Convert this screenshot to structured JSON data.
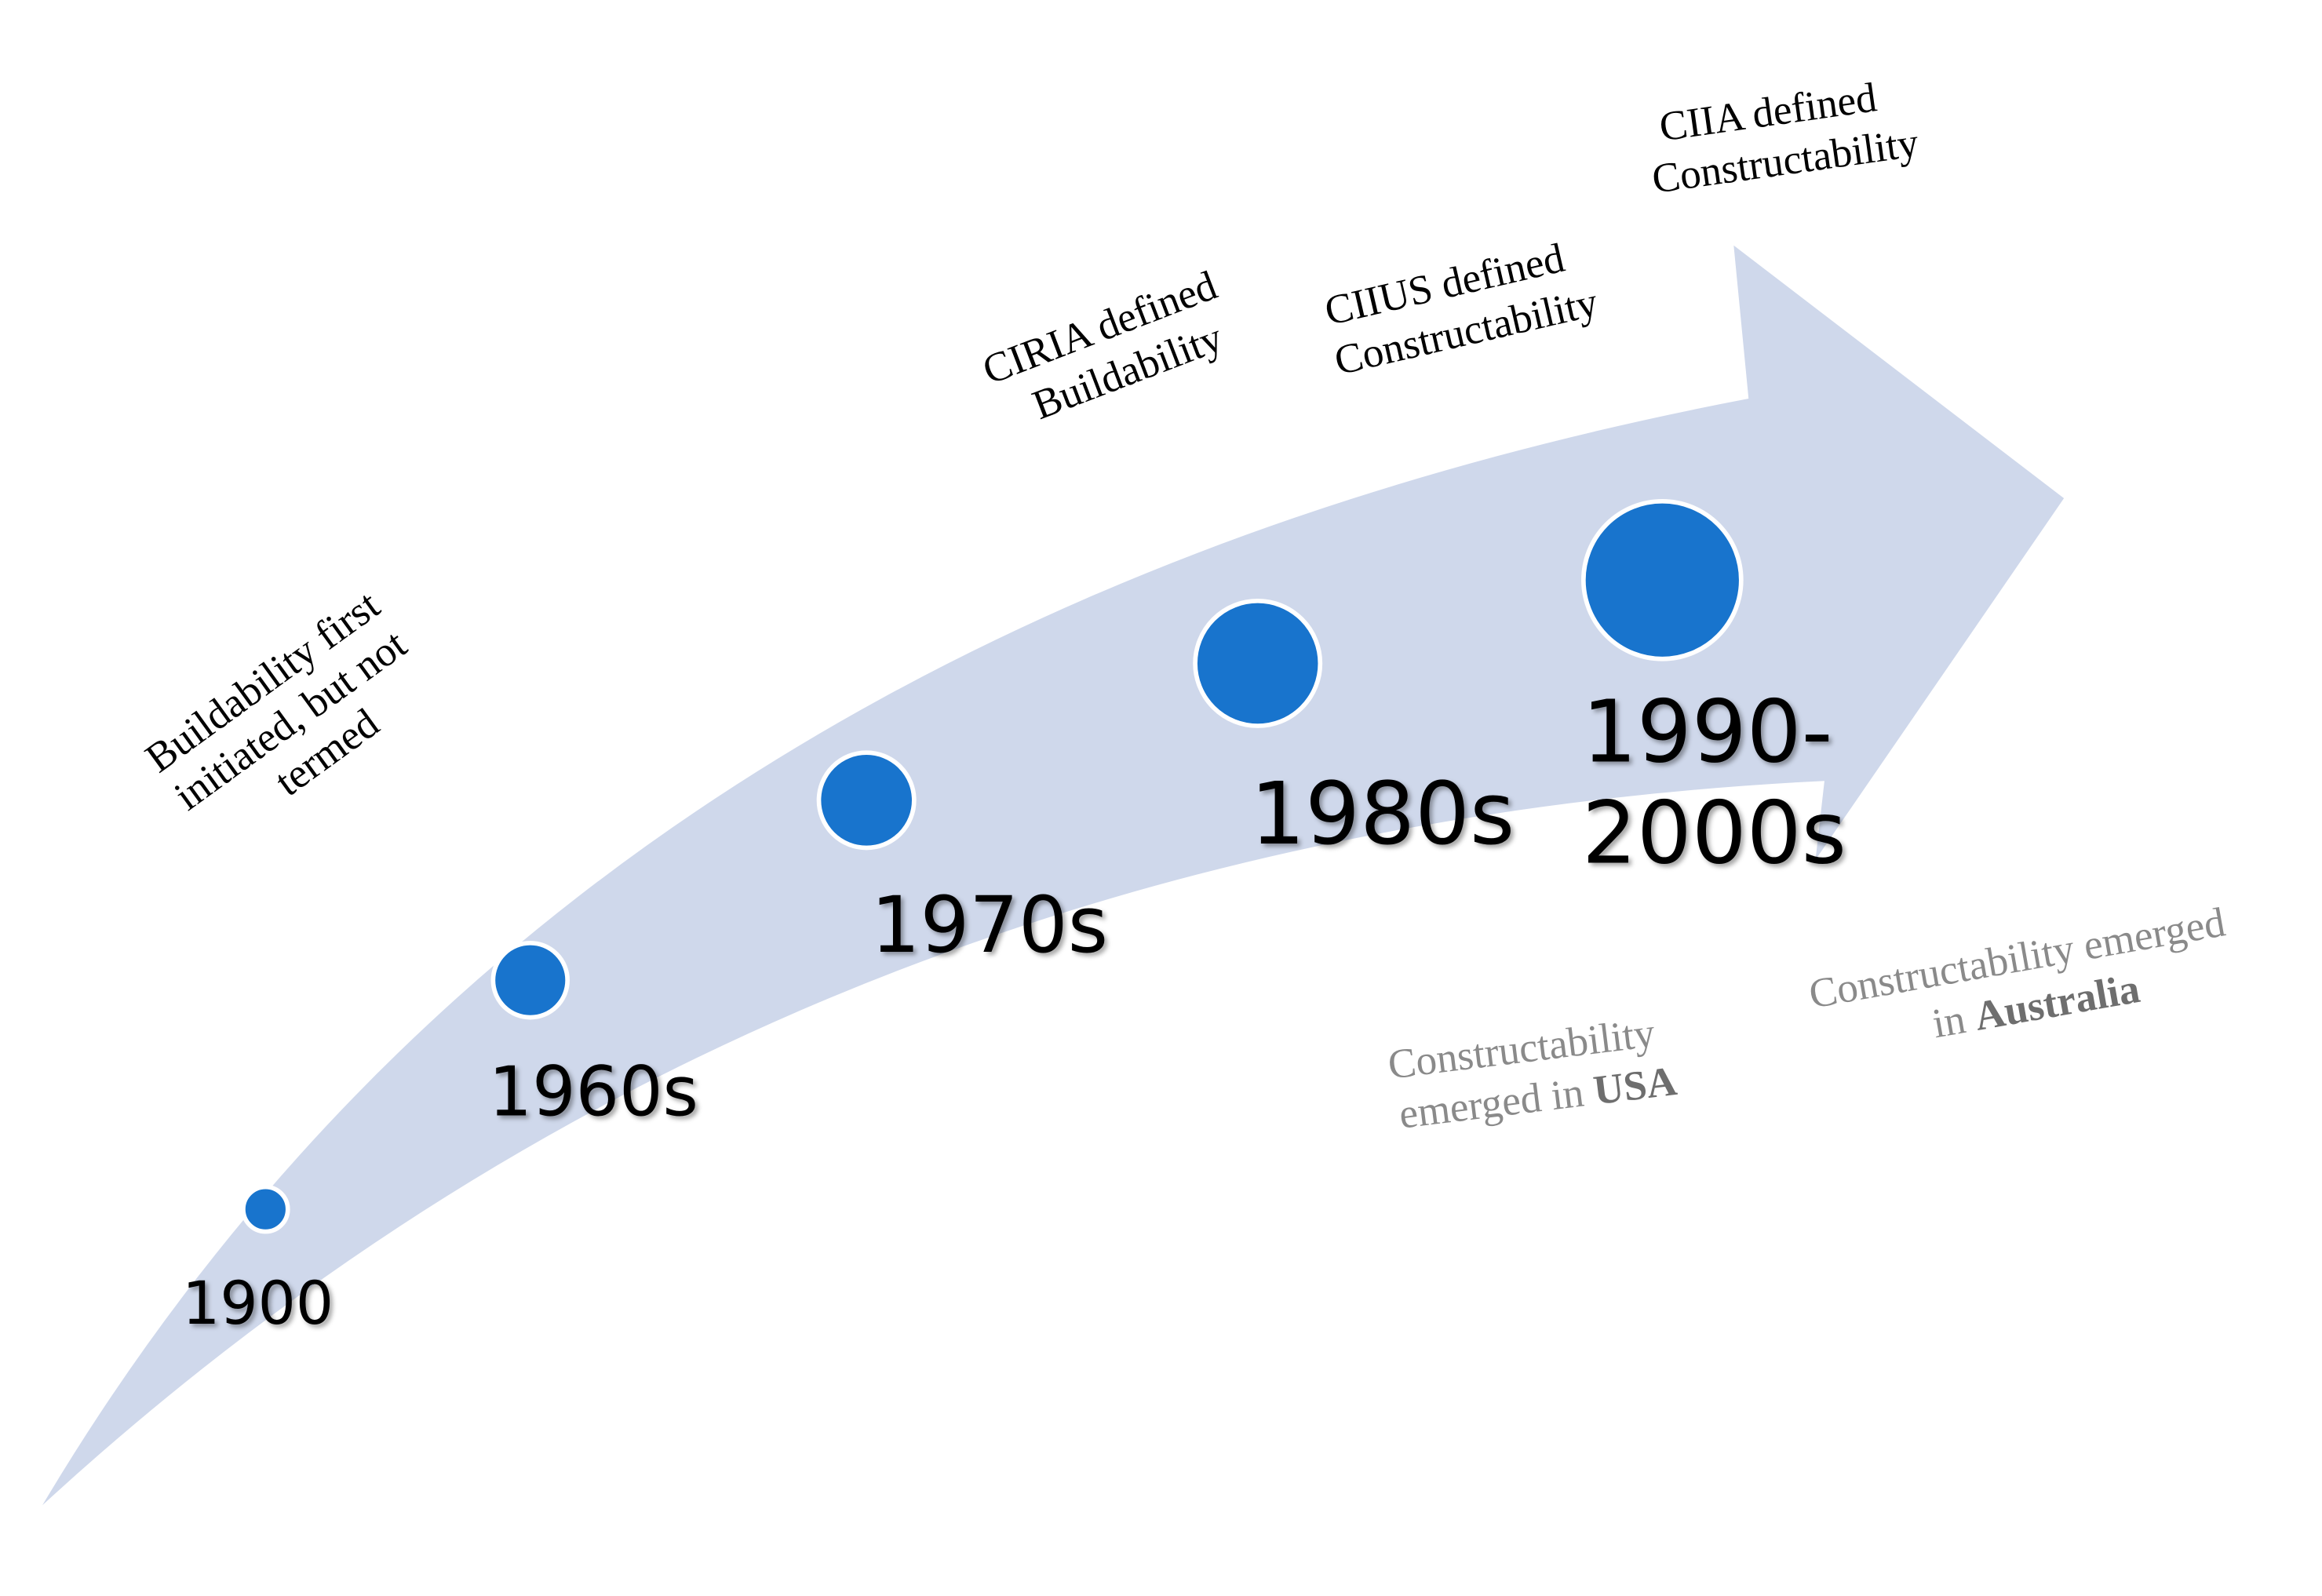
{
  "milestones": [
    {
      "label": [
        "1900"
      ]
    },
    {
      "label": [
        "1960s"
      ]
    },
    {
      "label": [
        "1970s"
      ]
    },
    {
      "label": [
        "1980s"
      ]
    },
    {
      "label": [
        "1990-",
        "2000s"
      ]
    }
  ],
  "annotations": [
    {
      "lines": [
        "Buildability first",
        "initiated, but not",
        "termed"
      ]
    },
    {
      "lines": [
        "CIRIA defined",
        "Buildability"
      ]
    },
    {
      "lines": [
        "CIIUS defined",
        "Constructability"
      ]
    },
    {
      "lines": [
        "CIIA defined",
        "Constructability"
      ]
    },
    {
      "lines": [
        "Constructability",
        "emerged in "
      ],
      "emphasis": "USA"
    },
    {
      "lines": [
        "Constructability emerged",
        "in "
      ],
      "emphasis": "Australia"
    }
  ]
}
